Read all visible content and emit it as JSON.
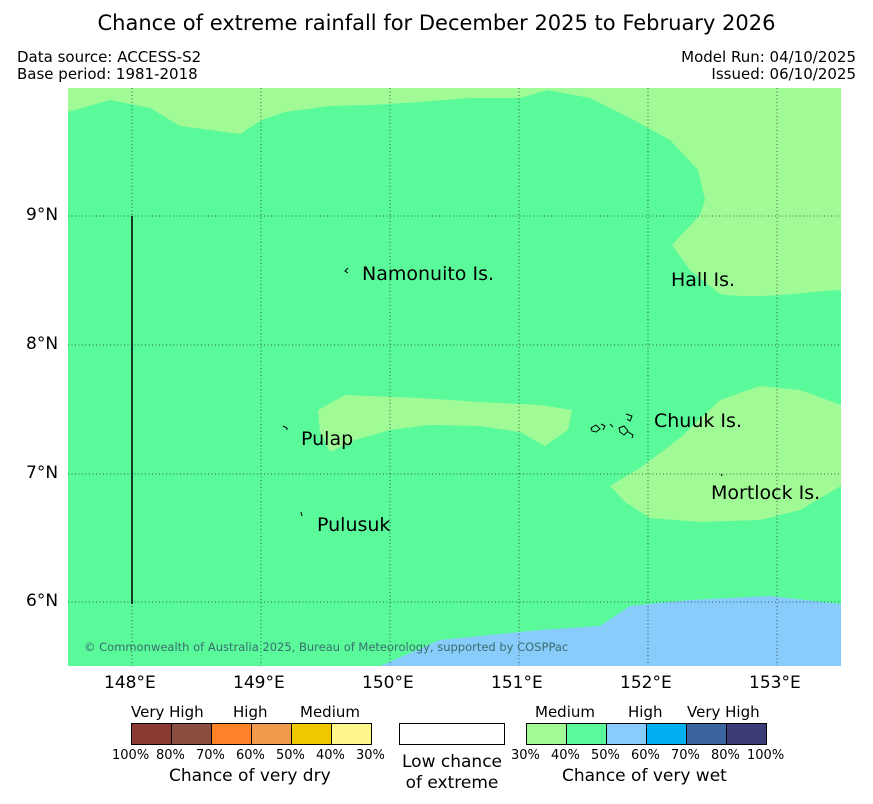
{
  "title": "Chance of extreme rainfall for December 2025 to February 2026",
  "data_source": "Data source: ACCESS-S2",
  "base_period": "Base period: 1981-2018",
  "model_run": "Model Run: 04/10/2025",
  "issued": "Issued: 06/10/2025",
  "map": {
    "lat_labels": [
      "9°N",
      "8°N",
      "7°N",
      "6°N"
    ],
    "lon_labels": [
      "148°E",
      "149°E",
      "150°E",
      "151°E",
      "152°E",
      "153°E"
    ],
    "places": [
      "Namonuito Is.",
      "Hall Is.",
      "Pulap",
      "Chuuk Is.",
      "Mortlock Is.",
      "Pulusuk"
    ],
    "copyright": "© Commonwealth of Australia 2025, Bureau of Meteorology, supported by COSPPac",
    "colors": {
      "dry_30_40_light": "#a0fa96",
      "wet_40_50": "#5afa9b",
      "wet_50_60": "#87ccfa"
    }
  },
  "legend": {
    "dry": {
      "categories": [
        "Very High",
        "High",
        "Medium"
      ],
      "ticks": [
        "100%",
        "80%",
        "70%",
        "60%",
        "50%",
        "40%",
        "30%"
      ],
      "colors": [
        "#8b3a33",
        "#8a4f40",
        "#ff8228",
        "#f09b4b",
        "#f0c800",
        "#fff68c"
      ],
      "caption": "Chance of very dry"
    },
    "neutral": {
      "caption_line1": "Low chance",
      "caption_line2": "of extreme",
      "color": "#ffffff"
    },
    "wet": {
      "categories": [
        "Medium",
        "High",
        "Very High"
      ],
      "ticks": [
        "30%",
        "40%",
        "50%",
        "60%",
        "70%",
        "80%",
        "100%"
      ],
      "colors": [
        "#a0fa96",
        "#5afa9b",
        "#87ccfa",
        "#00b0f0",
        "#3c64a0",
        "#3c3c78"
      ],
      "caption": "Chance of very wet"
    }
  }
}
